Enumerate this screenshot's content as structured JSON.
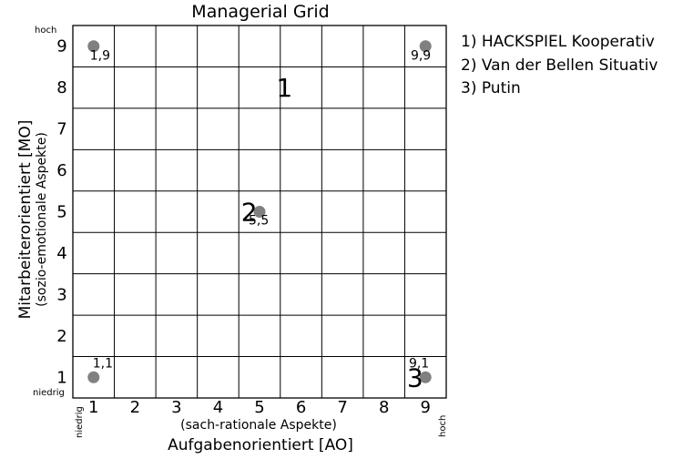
{
  "title": "Managerial Grid",
  "y_axis": {
    "label": "Mitarbeiterorientiert [MO]",
    "sublabel": "(sozio-emotionale Aspekte)",
    "high": "hoch",
    "low": "niedrig",
    "ticks": [
      "1",
      "2",
      "3",
      "4",
      "5",
      "6",
      "7",
      "8",
      "9"
    ]
  },
  "x_axis": {
    "label": "Aufgabenorientiert [AO]",
    "sublabel": "(sach-rationale Aspekte)",
    "low": "niedrig",
    "high": "hoch",
    "ticks": [
      "1",
      "2",
      "3",
      "4",
      "5",
      "6",
      "7",
      "8",
      "9"
    ]
  },
  "chart_data": {
    "type": "scatter",
    "title": "Managerial Grid",
    "xlabel": "Aufgabenorientiert [AO]",
    "ylabel": "Mitarbeiterorientiert [MO]",
    "xlim": [
      1,
      9
    ],
    "ylim": [
      1,
      9
    ],
    "grid": true,
    "marker_color": "#808080",
    "reference_points": [
      {
        "x": 1,
        "y": 9,
        "label": "1,9"
      },
      {
        "x": 9,
        "y": 9,
        "label": "9,9"
      },
      {
        "x": 5,
        "y": 5,
        "label": "5,5"
      },
      {
        "x": 1,
        "y": 1,
        "label": "1,1"
      },
      {
        "x": 9,
        "y": 1,
        "label": "9,1"
      }
    ],
    "annotations": [
      {
        "text": "1",
        "x": 5.6,
        "y": 8
      },
      {
        "text": "2",
        "x": 4.75,
        "y": 5
      },
      {
        "text": "3",
        "x": 8.75,
        "y": 1
      }
    ]
  },
  "legend": {
    "items": [
      "1) HACKSPIEL Kooperativ",
      "2) Van der Bellen Situativ",
      "3) Putin"
    ]
  }
}
